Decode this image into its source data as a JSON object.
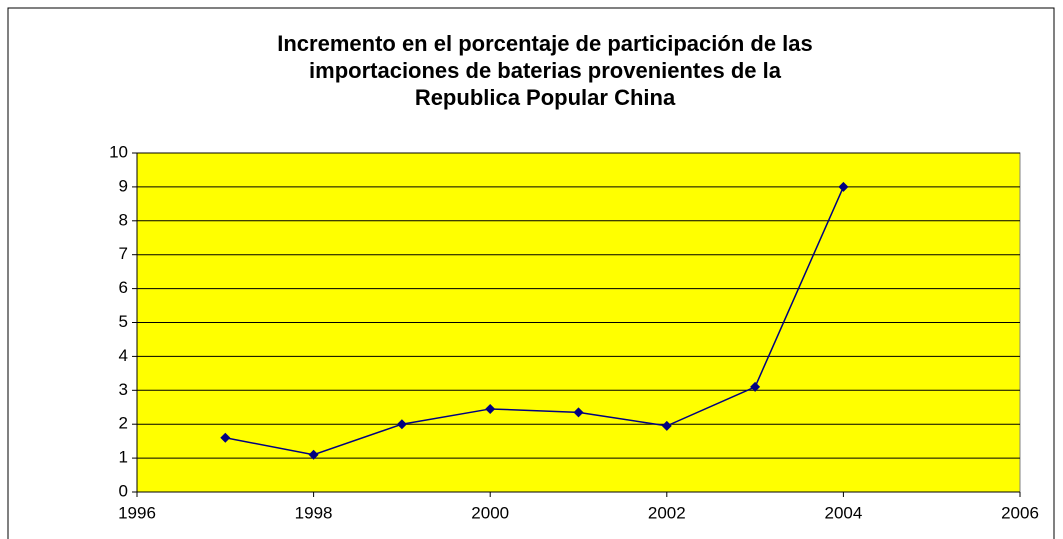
{
  "chart_data": {
    "type": "line",
    "title": [
      "Incremento en el porcentaje de participación de las",
      "importaciones de baterias provenientes de la",
      "Republica Popular China"
    ],
    "x": [
      1997,
      1998,
      1999,
      2000,
      2001,
      2002,
      2003,
      2004
    ],
    "series": [
      {
        "color": "#000080",
        "values": [
          1.6,
          1.1,
          2.0,
          2.45,
          2.35,
          1.95,
          3.1,
          9.0
        ]
      }
    ],
    "xlim": [
      1996,
      2006
    ],
    "xticks": [
      1996,
      1998,
      2000,
      2002,
      2004,
      2006
    ],
    "ylim": [
      0,
      10
    ],
    "yticks": [
      0,
      1,
      2,
      3,
      4,
      5,
      6,
      7,
      8,
      9,
      10
    ],
    "grid": true,
    "plot_background": "#ffff00"
  }
}
